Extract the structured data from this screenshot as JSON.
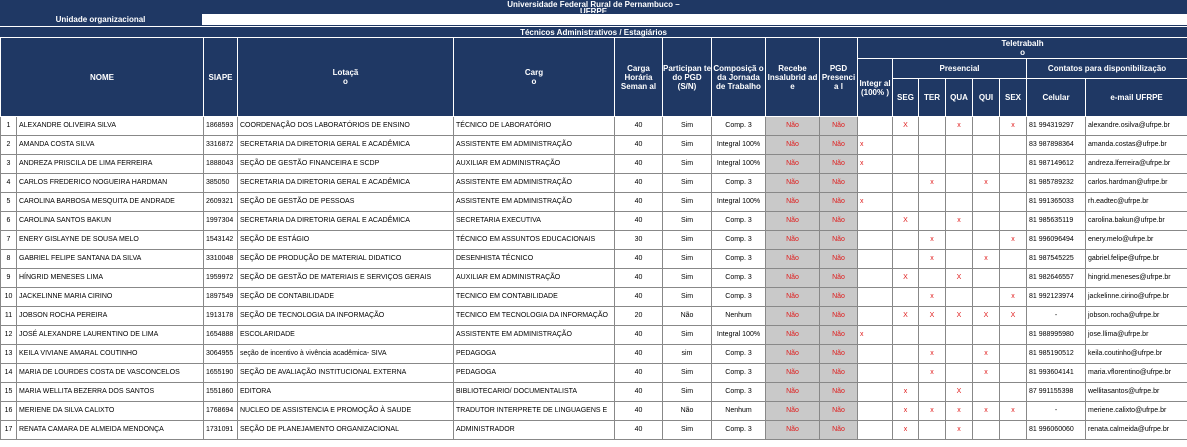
{
  "header": {
    "title_line1": "Universidade Federal Rural de Pernambuco –",
    "title_line2": "UFRPE",
    "org_label": "Unidade organizacional",
    "section_title": "Técnicos Administrativos / Estagiários"
  },
  "columns": {
    "nome": "NOME",
    "siape": "SIAPE",
    "lotacao": "Lotaçã\no",
    "cargo": "Carg\no",
    "carga": "Carga Horária Seman al",
    "participante": "Participan te do PGD (S/N)",
    "composicao": "Composiçã o da Jornada de Trabalho",
    "insalubridade": "Recebe Insalubrid ad e",
    "pgd_presencial": "PGD Presenci a l",
    "teletrabalho": "Teletrabalh\no",
    "integral": "Integr al (100% )",
    "presencial": "Presencial",
    "seg": "SEG",
    "ter": "TER",
    "qua": "QUA",
    "qui": "QUI",
    "sex": "SEX",
    "contatos": "Contatos para disponibilização",
    "celular": "Celular",
    "email": "e-mail UFRPE"
  },
  "rows": [
    {
      "idx": "1",
      "nome": "ALEXANDRE OLIVEIRA SILVA",
      "siape": "1868593",
      "lotacao": "COORDENAÇÃO DOS LABORATÓRIOS DE ENSINO",
      "cargo": "TÉCNICO DE LABORATÓRIO",
      "carga": "40",
      "participante": "Sim",
      "composicao": "Comp. 3",
      "insalubridade": "Não",
      "pgd": "Não",
      "integral": "",
      "seg": "X",
      "ter": "",
      "qua": "x",
      "qui": "",
      "sex": "x",
      "celular": "81 994319297",
      "email": "alexandre.osilva@ufrpe.br"
    },
    {
      "idx": "2",
      "nome": "AMANDA COSTA SILVA",
      "siape": "3316872",
      "lotacao": "SECRETARIA DA DIRETORIA GERAL E ACADÊMICA",
      "cargo": "ASSISTENTE EM ADMINISTRAÇÃO",
      "carga": "40",
      "participante": "Sim",
      "composicao": "Integral 100%",
      "insalubridade": "Não",
      "pgd": "Não",
      "integral": "x",
      "seg": "",
      "ter": "",
      "qua": "",
      "qui": "",
      "sex": "",
      "celular": "83 987898364",
      "email": "amanda.costas@ufrpe.br"
    },
    {
      "idx": "3",
      "nome": "ANDREZA PRISCILA DE LIMA FERREIRA",
      "siape": "1888043",
      "lotacao": "SEÇÃO DE GESTÃO FINANCEIRA E SCDP",
      "cargo": "AUXILIAR EM ADMINISTRAÇÃO",
      "carga": "40",
      "participante": "Sim",
      "composicao": "Integral 100%",
      "insalubridade": "Não",
      "pgd": "Não",
      "integral": "x",
      "seg": "",
      "ter": "",
      "qua": "",
      "qui": "",
      "sex": "",
      "celular": "81 987149612",
      "email": "andreza.lferreira@ufrpe.br"
    },
    {
      "idx": "4",
      "nome": "CARLOS FREDERICO NOGUEIRA HARDMAN",
      "siape": "385050",
      "lotacao": "SECRETARIA DA DIRETORIA GERAL E ACADÊMICA",
      "cargo": "ASSISTENTE EM ADMINISTRAÇÃO",
      "carga": "40",
      "participante": "Sim",
      "composicao": "Comp. 3",
      "insalubridade": "Não",
      "pgd": "Não",
      "integral": "",
      "seg": "",
      "ter": "x",
      "qua": "",
      "qui": "x",
      "sex": "",
      "celular": "81 985789232",
      "email": "carlos.hardman@ufrpe.br"
    },
    {
      "idx": "5",
      "nome": "CAROLINA BARBOSA MESQUITA DE ANDRADE",
      "siape": "2609321",
      "lotacao": "SEÇÃO DE GESTÃO DE PESSOAS",
      "cargo": "ASSISTENTE EM ADMINISTRAÇÃO",
      "carga": "40",
      "participante": "Sim",
      "composicao": "Integral 100%",
      "insalubridade": "Não",
      "pgd": "Não",
      "integral": "x",
      "seg": "",
      "ter": "",
      "qua": "",
      "qui": "",
      "sex": "",
      "celular": "81 991365033",
      "email": "rh.eadtec@ufrpe.br"
    },
    {
      "idx": "6",
      "nome": "CAROLINA SANTOS BAKUN",
      "siape": "1997304",
      "lotacao": "SECRETARIA DA DIRETORIA GERAL E ACADÊMICA",
      "cargo": "SECRETARIA EXECUTIVA",
      "carga": "40",
      "participante": "Sim",
      "composicao": "Comp. 3",
      "insalubridade": "Não",
      "pgd": "Não",
      "integral": "",
      "seg": "X",
      "ter": "",
      "qua": "x",
      "qui": "",
      "sex": "",
      "celular": "81 985635119",
      "email": "carolina.bakun@ufrpe.br"
    },
    {
      "idx": "7",
      "nome": "ENERY GISLAYNE DE SOUSA MELO",
      "siape": "1543142",
      "lotacao": "SEÇÃO DE ESTÁGIO",
      "cargo": "TÉCNICO EM ASSUNTOS EDUCACIONAIS",
      "carga": "30",
      "participante": "Sim",
      "composicao": "Comp. 3",
      "insalubridade": "Não",
      "pgd": "Não",
      "integral": "",
      "seg": "",
      "ter": "x",
      "qua": "",
      "qui": "",
      "sex": "x",
      "celular": "81 996096494",
      "email": "enery.melo@ufrpe.br"
    },
    {
      "idx": "8",
      "nome": "GABRIEL FELIPE SANTANA DA SILVA",
      "siape": "3310048",
      "lotacao": "SEÇÃO DE PRODUÇÃO DE MATERIAL DIDATICO",
      "cargo": "DESENHISTA TÉCNICO",
      "carga": "40",
      "participante": "Sim",
      "composicao": "Comp. 3",
      "insalubridade": "Não",
      "pgd": "Não",
      "integral": "",
      "seg": "",
      "ter": "x",
      "qua": "",
      "qui": "x",
      "sex": "",
      "celular": "81 987545225",
      "email": "gabriel.felipe@ufrpe.br"
    },
    {
      "idx": "9",
      "nome": "HÍNGRID MENESES LIMA",
      "siape": "1959972",
      "lotacao": "SEÇÃO DE GESTÃO DE MATERIAIS E SERVIÇOS GERAIS",
      "cargo": "AUXILIAR EM ADMINISTRAÇÃO",
      "carga": "40",
      "participante": "Sim",
      "composicao": "Comp. 3",
      "insalubridade": "Não",
      "pgd": "Não",
      "integral": "",
      "seg": "X",
      "ter": "",
      "qua": "X",
      "qui": "",
      "sex": "",
      "celular": "81 982646557",
      "email": "hingrid.meneses@ufrpe.br"
    },
    {
      "idx": "10",
      "nome": "JACKELINNE MARIA CIRINO",
      "siape": "1897549",
      "lotacao": "SEÇÃO DE CONTABILIDADE",
      "cargo": "TECNICO EM CONTABILIDADE",
      "carga": "40",
      "participante": "Sim",
      "composicao": "Comp. 3",
      "insalubridade": "Não",
      "pgd": "Não",
      "integral": "",
      "seg": "",
      "ter": "x",
      "qua": "",
      "qui": "",
      "sex": "x",
      "celular": "81 992123974",
      "email": "jackelinne.cirino@ufrpe.br"
    },
    {
      "idx": "11",
      "nome": "JOBSON ROCHA PEREIRA",
      "siape": "1913178",
      "lotacao": "SEÇÃO DE TECNOLOGIA DA INFORMAÇÃO",
      "cargo": "TECNICO EM TECNOLOGIA DA INFORMAÇÃO",
      "carga": "20",
      "participante": "Não",
      "composicao": "Nenhum",
      "insalubridade": "Não",
      "pgd": "Não",
      "integral": "",
      "seg": "X",
      "ter": "X",
      "qua": "X",
      "qui": "X",
      "sex": "X",
      "celular": "-",
      "email": "jobson.rocha@ufrpe.br"
    },
    {
      "idx": "12",
      "nome": "JOSÉ ALEXANDRE LAURENTINO DE LIMA",
      "siape": "1654888",
      "lotacao": "ESCOLARIDADE",
      "cargo": "ASSISTENTE EM ADMINISTRAÇÃO",
      "carga": "40",
      "participante": "Sim",
      "composicao": "Integral 100%",
      "insalubridade": "Não",
      "pgd": "Não",
      "integral": "x",
      "seg": "",
      "ter": "",
      "qua": "",
      "qui": "",
      "sex": "",
      "celular": "81 988995980",
      "email": "jose.llima@ufrpe.br"
    },
    {
      "idx": "13",
      "nome": "KEILA VIVIANE AMARAL COUTINHO",
      "siape": "3064955",
      "lotacao": "seção de incentivo à vivência acadêmica- SIVA",
      "cargo": "PEDAGOGA",
      "carga": "40",
      "participante": "sim",
      "composicao": "Comp. 3",
      "insalubridade": "Não",
      "pgd": "Não",
      "integral": "",
      "seg": "",
      "ter": "x",
      "qua": "",
      "qui": "x",
      "sex": "",
      "celular": "81 985190512",
      "email": "keila.coutinho@ufrpe.br"
    },
    {
      "idx": "14",
      "nome": "MARIA DE LOURDES COSTA DE VASCONCELOS",
      "siape": "1655190",
      "lotacao": "SEÇÃO DE AVALIAÇÃO INSTITUCIONAL EXTERNA",
      "cargo": "PEDAGOGA",
      "carga": "40",
      "participante": "Sim",
      "composicao": "Comp. 3",
      "insalubridade": "Não",
      "pgd": "Não",
      "integral": "",
      "seg": "",
      "ter": "x",
      "qua": "",
      "qui": "x",
      "sex": "",
      "celular": "81 993604141",
      "email": "maria.vflorentino@ufrpe.br"
    },
    {
      "idx": "15",
      "nome": "MARIA WELLITA BEZERRA DOS SANTOS",
      "siape": "1551860",
      "lotacao": "EDITORA",
      "cargo": "BIBLIOTECARIO/ DOCUMENTALISTA",
      "carga": "40",
      "participante": "Sim",
      "composicao": "Comp. 3",
      "insalubridade": "Não",
      "pgd": "Não",
      "integral": "",
      "seg": "x",
      "ter": "",
      "qua": "X",
      "qui": "",
      "sex": "",
      "celular": "87 991155398",
      "email": "wellitasantos@ufrpe.br"
    },
    {
      "idx": "16",
      "nome": "MERIENE DA SILVA CALIXTO",
      "siape": "1768694",
      "lotacao": "NUCLEO DE ASSISTENCIA E PROMOÇÃO À SAUDE",
      "cargo": "TRADUTOR INTERPRETE DE LINGUAGENS E",
      "carga": "40",
      "participante": "Não",
      "composicao": "Nenhum",
      "insalubridade": "Não",
      "pgd": "Não",
      "integral": "",
      "seg": "x",
      "ter": "x",
      "qua": "x",
      "qui": "x",
      "sex": "x",
      "celular": "-",
      "email": "meriene.calixto@ufrpe.br"
    },
    {
      "idx": "17",
      "nome": "RENATA CAMARA DE ALMEIDA MENDONÇA",
      "siape": "1731091",
      "lotacao": "SEÇÃO DE PLANEJAMENTO ORGANIZACIONAL",
      "cargo": "ADMINISTRADOR",
      "carga": "40",
      "participante": "Sim",
      "composicao": "Comp. 3",
      "insalubridade": "Não",
      "pgd": "Não",
      "integral": "",
      "seg": "x",
      "ter": "",
      "qua": "x",
      "qui": "",
      "sex": "",
      "celular": "81 996060060",
      "email": "renata.calmeida@ufrpe.br"
    }
  ]
}
